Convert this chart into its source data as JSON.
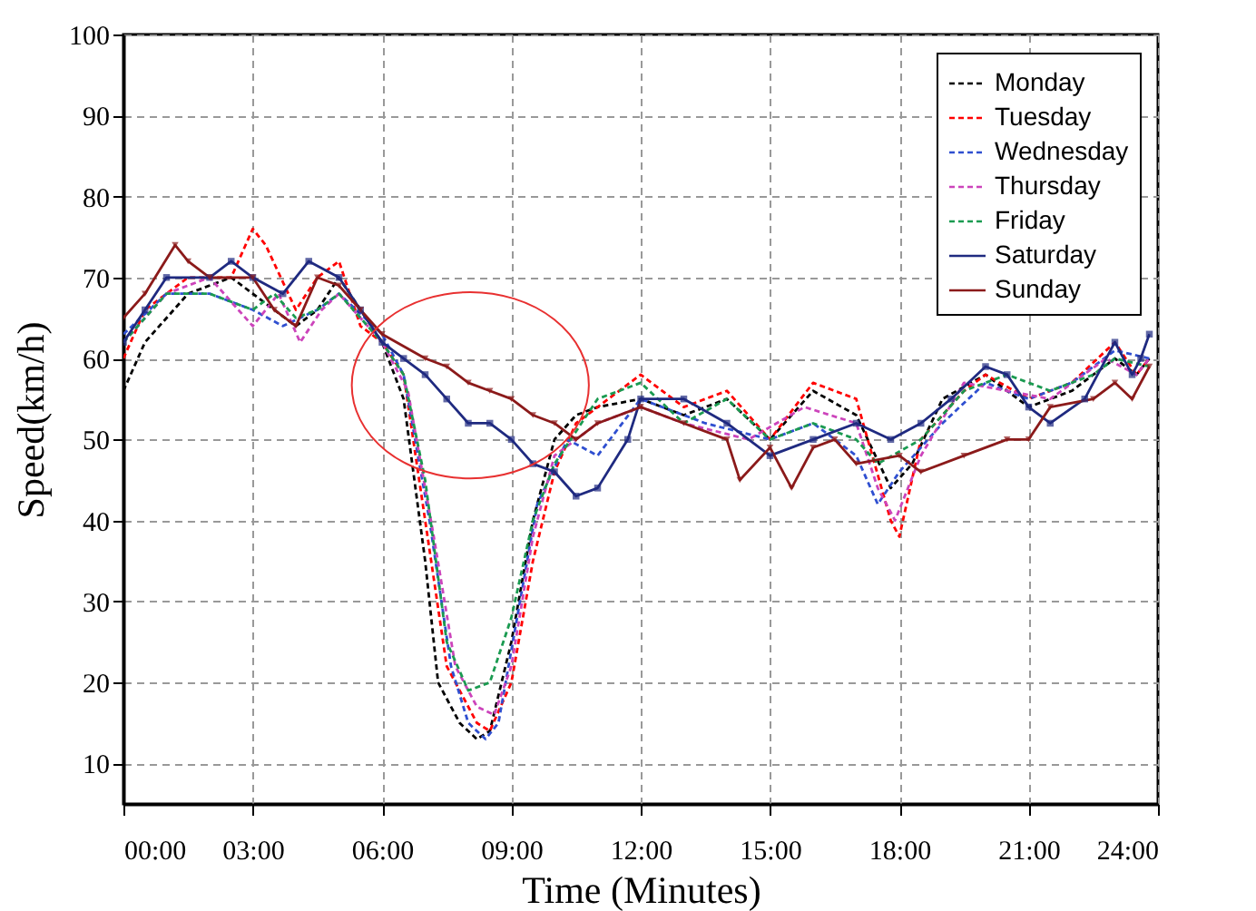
{
  "chart_data": {
    "type": "line",
    "xlabel": "Time (Minutes)",
    "ylabel": "Speed(km/h)",
    "xlim": [
      0,
      24
    ],
    "ylim": [
      5,
      100
    ],
    "xticks": [
      {
        "value": 0,
        "label": "00:00"
      },
      {
        "value": 3,
        "label": "03:00"
      },
      {
        "value": 6,
        "label": "06:00"
      },
      {
        "value": 9,
        "label": "09:00"
      },
      {
        "value": 12,
        "label": "12:00"
      },
      {
        "value": 15,
        "label": "15:00"
      },
      {
        "value": 18,
        "label": "18:00"
      },
      {
        "value": 21,
        "label": "21:00"
      },
      {
        "value": 24,
        "label": "24:00"
      }
    ],
    "yticks": [
      10,
      20,
      30,
      40,
      50,
      60,
      70,
      80,
      90,
      100
    ],
    "grid": true,
    "legend": "top right",
    "series": [
      {
        "name": "Monday",
        "color": "#000000",
        "line_style": "dashed",
        "x": [
          0,
          0.5,
          1.5,
          2.5,
          3,
          3.5,
          4,
          4.5,
          5,
          5.5,
          6,
          6.5,
          7,
          7.3,
          7.8,
          8.2,
          8.5,
          9,
          9.5,
          10,
          10.5,
          11,
          12,
          13,
          14,
          15,
          15.5,
          16,
          17,
          17.8,
          18.3,
          19,
          20,
          21,
          22,
          23,
          23.5,
          23.8
        ],
        "values": [
          56,
          62,
          68,
          70,
          68,
          66,
          64,
          66,
          70,
          66,
          62,
          55,
          35,
          20,
          15,
          13,
          14,
          25,
          40,
          50,
          53,
          54,
          55,
          53,
          55,
          50,
          53,
          56,
          53,
          44,
          47,
          55,
          58,
          54,
          56,
          60,
          58,
          60
        ]
      },
      {
        "name": "Tuesday",
        "color": "#ff0000",
        "line_style": "dashed",
        "x": [
          0,
          0.5,
          1.5,
          2.5,
          3,
          3.3,
          4,
          4.5,
          5,
          5.5,
          6,
          6.5,
          7,
          7.5,
          8.2,
          8.5,
          9,
          9.5,
          10,
          10.5,
          11.5,
          12,
          13,
          14,
          15,
          16,
          17,
          17.8,
          18,
          18.5,
          19.5,
          20,
          21,
          22,
          23,
          23.5,
          23.8
        ],
        "values": [
          60,
          66,
          70,
          70,
          76,
          74,
          66,
          70,
          72,
          64,
          62,
          58,
          40,
          22,
          15,
          14,
          20,
          35,
          46,
          52,
          56,
          58,
          54,
          56,
          50,
          57,
          55,
          40,
          38,
          50,
          56,
          58,
          55,
          57,
          62,
          58,
          60
        ]
      },
      {
        "name": "Wednesday",
        "color": "#2f4fd0",
        "line_style": "dashed",
        "x": [
          0,
          1,
          2,
          3,
          3.7,
          4.5,
          5,
          6,
          6.5,
          7.1,
          7.6,
          8,
          8.4,
          8.7,
          9.2,
          9.6,
          10.3,
          11,
          12,
          13.5,
          15,
          16,
          17,
          17.5,
          18,
          19,
          20,
          21,
          22,
          23,
          23.8
        ],
        "values": [
          63,
          68,
          68,
          66,
          64,
          66,
          68,
          63,
          58,
          40,
          22,
          15,
          13,
          15,
          30,
          42,
          50,
          48,
          55,
          52,
          50,
          52,
          48,
          42,
          46,
          52,
          57,
          55,
          57,
          61,
          60
        ]
      },
      {
        "name": "Thursday",
        "color": "#cc44bb",
        "line_style": "dashed",
        "x": [
          0,
          1,
          2,
          3,
          3.6,
          4.1,
          4.6,
          5,
          6,
          6.6,
          7.2,
          7.7,
          8.2,
          8.6,
          9,
          9.5,
          10,
          11,
          12,
          13,
          14.5,
          15.8,
          17,
          17.5,
          17.9,
          18.5,
          19.5,
          20.5,
          21.5,
          22.8,
          23.5,
          23.8
        ],
        "values": [
          62,
          68,
          70,
          64,
          68,
          62,
          66,
          68,
          62,
          56,
          38,
          22,
          17,
          16,
          22,
          38,
          48,
          52,
          54,
          52,
          50,
          54,
          52,
          44,
          40,
          48,
          57,
          56,
          55,
          60,
          58,
          60
        ]
      },
      {
        "name": "Friday",
        "color": "#1a9a50",
        "line_style": "dashed",
        "x": [
          0,
          1,
          2,
          3,
          3.5,
          4,
          4.5,
          5,
          6,
          6.5,
          7,
          7.5,
          8,
          8.5,
          9,
          9.5,
          10,
          11,
          12,
          13,
          14,
          15,
          16,
          17,
          17.5,
          18.5,
          19.5,
          20.5,
          21.5,
          22.5,
          23,
          23.8
        ],
        "values": [
          62,
          68,
          68,
          66,
          68,
          65,
          66,
          68,
          62,
          58,
          45,
          25,
          19,
          20,
          28,
          40,
          47,
          55,
          57,
          52,
          55,
          50,
          52,
          50,
          47,
          50,
          56,
          58,
          56,
          58,
          60,
          59
        ]
      },
      {
        "name": "Saturday",
        "color": "#1f2a80",
        "line_style": "solid",
        "marker": "square",
        "x": [
          0,
          0.5,
          1,
          2,
          2.5,
          3,
          3.7,
          4.3,
          5,
          5.5,
          6,
          6.5,
          7,
          7.5,
          8,
          8.5,
          9,
          9.5,
          10,
          10.5,
          11,
          11.7,
          12,
          13,
          14,
          15,
          16,
          17,
          17.8,
          18.5,
          19.2,
          20,
          20.5,
          21,
          21.5,
          22.3,
          23,
          23.4,
          23.6,
          23.8
        ],
        "values": [
          62,
          66,
          70,
          70,
          72,
          70,
          68,
          72,
          70,
          66,
          62,
          60,
          58,
          55,
          52,
          52,
          50,
          47,
          46,
          43,
          44,
          50,
          55,
          55,
          52,
          48,
          50,
          52,
          50,
          52,
          55,
          59,
          58,
          54,
          52,
          55,
          62,
          58,
          60,
          63
        ]
      },
      {
        "name": "Sunday",
        "color": "#8b1a1a",
        "line_style": "solid",
        "marker": "triangle",
        "x": [
          0,
          0.5,
          1.2,
          1.5,
          2,
          3,
          3.5,
          4,
          4.5,
          5,
          5.5,
          6,
          7,
          7.5,
          8,
          8.5,
          9,
          9.5,
          10,
          10.5,
          11,
          12,
          13,
          14,
          14.3,
          15,
          15.5,
          16,
          16.5,
          17,
          18,
          18.5,
          19.5,
          20.5,
          21,
          21.5,
          22.5,
          23,
          23.4,
          23.8
        ],
        "values": [
          65,
          68,
          74,
          72,
          70,
          70,
          66,
          64,
          70,
          69,
          66,
          63,
          60,
          59,
          57,
          56,
          55,
          53,
          52,
          50,
          52,
          54,
          52,
          50,
          45,
          49,
          44,
          49,
          50,
          47,
          48,
          46,
          48,
          50,
          50,
          54,
          55,
          57,
          55,
          59
        ]
      }
    ]
  }
}
